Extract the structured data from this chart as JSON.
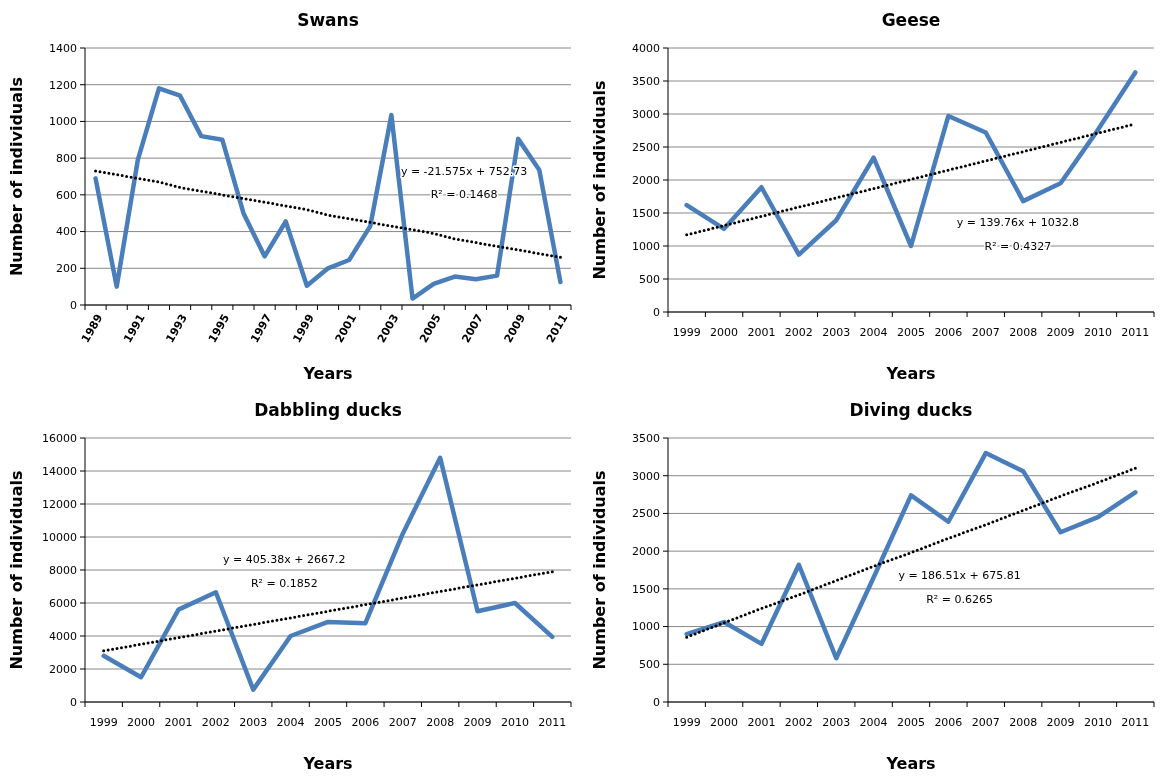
{
  "chart_data": [
    {
      "type": "line",
      "title": "Swans",
      "xlabel": "Years",
      "ylabel": "Number of individuals",
      "categories": [
        "1989",
        null,
        "1991",
        null,
        "1993",
        null,
        "1995",
        null,
        "1997",
        null,
        "1999",
        null,
        "2001",
        null,
        "2003",
        null,
        "2005",
        null,
        "2007",
        null,
        "2009",
        null,
        "2011"
      ],
      "series": [
        {
          "color": "#4a7ebb",
          "line_style": "solid",
          "values": [
            690,
            100,
            790,
            1180,
            1140,
            920,
            900,
            500,
            265,
            455,
            105,
            200,
            245,
            430,
            1035,
            35,
            115,
            155,
            140,
            160,
            905,
            735,
            125
          ]
        },
        {
          "type": "line",
          "color": "#000000",
          "line_style": "dotted",
          "values": [
            730,
            710,
            690,
            670,
            640,
            620,
            600,
            580,
            560,
            540,
            520,
            490,
            470,
            450,
            430,
            410,
            390,
            360,
            340,
            320,
            300,
            280,
            260
          ]
        }
      ],
      "ylim": [
        0,
        1400
      ],
      "yticks": [
        0,
        200,
        400,
        600,
        800,
        1000,
        1200,
        1400
      ],
      "grid": "y",
      "annotations": [
        "y = -21.575x + 752.73",
        "R² = 0.1468"
      ]
    },
    {
      "type": "line",
      "title": "Geese",
      "xlabel": "Years",
      "ylabel": "Number of individuals",
      "categories": [
        "1999",
        "2000",
        "2001",
        "2002",
        "2003",
        "2004",
        "2005",
        "2006",
        "2007",
        "2008",
        "2009",
        "2010",
        "2011"
      ],
      "series": [
        {
          "color": "#4a7ebb",
          "line_style": "solid",
          "values": [
            1620,
            1260,
            1890,
            870,
            1390,
            2340,
            1000,
            2970,
            2720,
            1680,
            1950,
            2760,
            3630
          ]
        },
        {
          "type": "line",
          "color": "#000000",
          "line_style": "dotted",
          "values": [
            1170,
            1310,
            1450,
            1590,
            1730,
            1870,
            2010,
            2150,
            2290,
            2430,
            2570,
            2710,
            2850
          ]
        }
      ],
      "ylim": [
        0,
        4000
      ],
      "yticks": [
        0,
        500,
        1000,
        1500,
        2000,
        2500,
        3000,
        3500,
        4000
      ],
      "grid": "y",
      "annotations": [
        "y = 139.76x + 1032.8",
        "R² = 0.4327"
      ]
    },
    {
      "type": "line",
      "title": "Dabbling ducks",
      "xlabel": "Years",
      "ylabel": "Number of individuals",
      "categories": [
        "1999",
        "2000",
        "2001",
        "2002",
        "2003",
        "2004",
        "2005",
        "2006",
        "2007",
        "2008",
        "2009",
        "2010",
        "2011"
      ],
      "series": [
        {
          "color": "#4a7ebb",
          "line_style": "solid",
          "values": [
            2800,
            1500,
            5600,
            6650,
            750,
            4000,
            4850,
            4780,
            10200,
            14800,
            5500,
            6000,
            3950
          ]
        },
        {
          "type": "line",
          "color": "#000000",
          "line_style": "dotted",
          "values": [
            3100,
            3500,
            3900,
            4300,
            4700,
            5100,
            5500,
            5900,
            6300,
            6700,
            7100,
            7500,
            7900
          ]
        }
      ],
      "ylim": [
        0,
        16000
      ],
      "yticks": [
        0,
        2000,
        4000,
        6000,
        8000,
        10000,
        12000,
        14000,
        16000
      ],
      "grid": "y",
      "annotations": [
        "y = 405.38x + 2667.2",
        "R² = 0.1852"
      ]
    },
    {
      "type": "line",
      "title": "Diving ducks",
      "xlabel": "Years",
      "ylabel": "Number of individuals",
      "categories": [
        "1999",
        "2000",
        "2001",
        "2002",
        "2003",
        "2004",
        "2005",
        "2006",
        "2007",
        "2008",
        "2009",
        "2010",
        "2011"
      ],
      "series": [
        {
          "color": "#4a7ebb",
          "line_style": "solid",
          "values": [
            900,
            1060,
            770,
            1820,
            580,
            1650,
            2740,
            2390,
            3300,
            3060,
            2250,
            2450,
            2780
          ]
        },
        {
          "type": "line",
          "color": "#000000",
          "line_style": "dotted",
          "values": [
            860,
            1050,
            1240,
            1420,
            1610,
            1800,
            1980,
            2170,
            2350,
            2540,
            2730,
            2910,
            3100
          ]
        }
      ],
      "ylim": [
        0,
        3500
      ],
      "yticks": [
        0,
        500,
        1000,
        1500,
        2000,
        2500,
        3000,
        3500
      ],
      "grid": "y",
      "annotations": [
        "y = 186.51x + 675.81",
        "R² = 0.6265"
      ]
    }
  ]
}
